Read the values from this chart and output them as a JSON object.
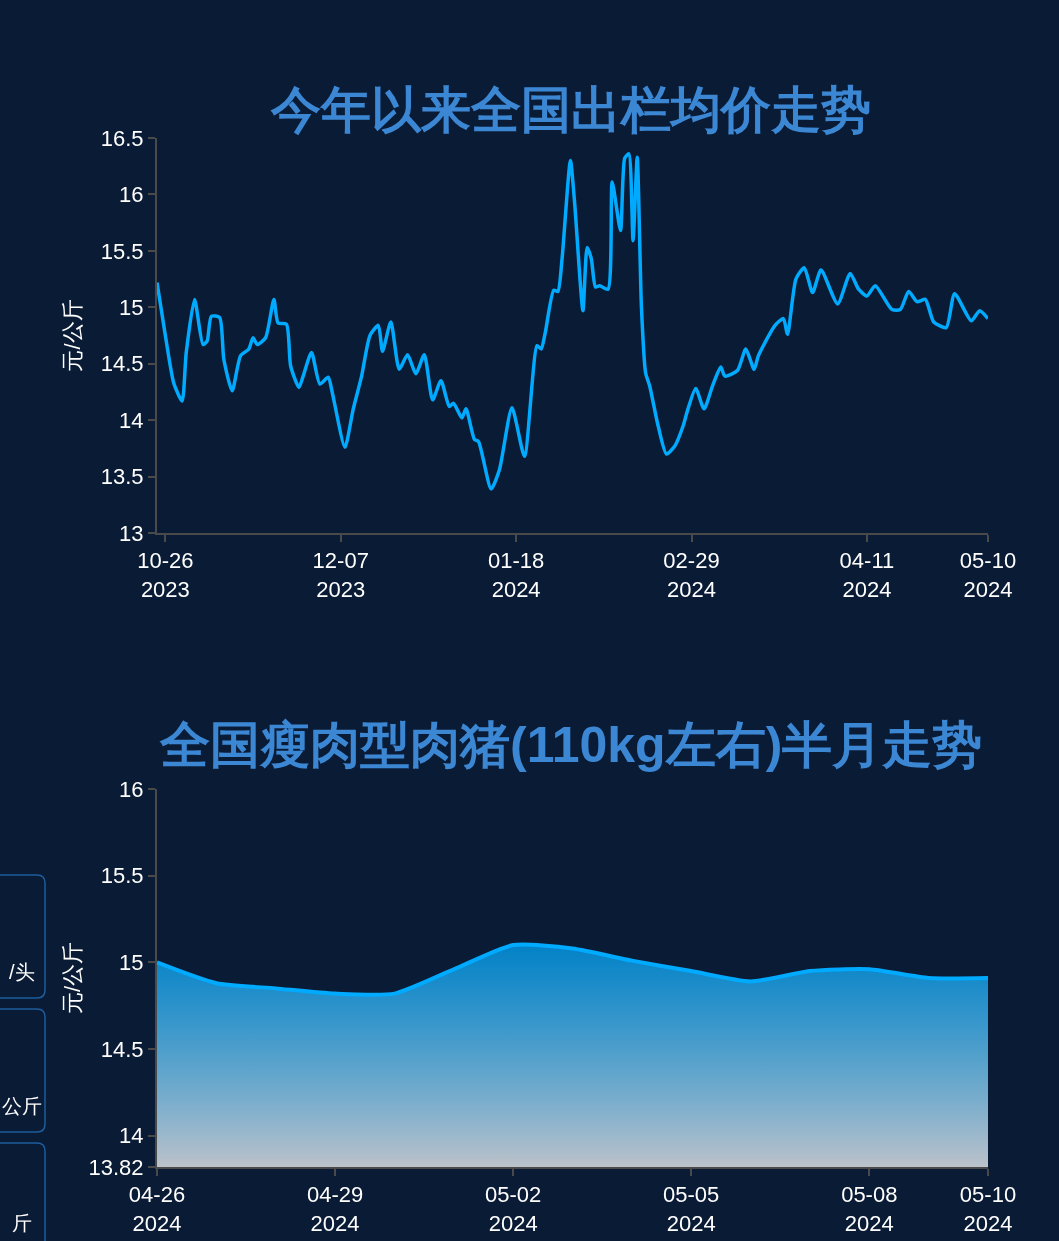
{
  "chart_data": [
    {
      "type": "line",
      "title": "今年以来全国出栏均价走势",
      "ylabel": "元/公斤",
      "x": [
        "2023-10-24",
        "2023-10-26",
        "2023-10-28",
        "2023-10-30",
        "2023-10-31",
        "2023-11-02",
        "2023-11-04",
        "2023-11-05",
        "2023-11-06",
        "2023-11-08",
        "2023-11-09",
        "2023-11-11",
        "2023-11-13",
        "2023-11-15",
        "2023-11-16",
        "2023-11-17",
        "2023-11-19",
        "2023-11-21",
        "2023-11-22",
        "2023-11-24",
        "2023-11-25",
        "2023-11-27",
        "2023-11-28",
        "2023-11-30",
        "2023-12-02",
        "2023-12-04",
        "2023-12-05",
        "2023-12-08",
        "2023-12-10",
        "2023-12-12",
        "2023-12-14",
        "2023-12-16",
        "2023-12-17",
        "2023-12-19",
        "2023-12-21",
        "2023-12-23",
        "2023-12-25",
        "2023-12-27",
        "2023-12-29",
        "2023-12-31",
        "2024-01-02",
        "2024-01-03",
        "2024-01-05",
        "2024-01-06",
        "2024-01-08",
        "2024-01-09",
        "2024-01-12",
        "2024-01-14",
        "2024-01-17",
        "2024-01-20",
        "2024-01-23",
        "2024-01-24",
        "2024-01-25",
        "2024-01-27",
        "2024-01-28",
        "2024-01-29",
        "2024-01-31",
        "2024-02-01",
        "2024-02-03",
        "2024-02-04",
        "2024-02-05",
        "2024-02-06",
        "2024-02-07",
        "2024-02-09",
        "2024-02-10",
        "2024-02-12",
        "2024-02-13",
        "2024-02-14",
        "2024-02-15",
        "2024-02-16",
        "2024-02-17",
        "2024-02-18",
        "2024-02-19",
        "2024-02-21",
        "2024-02-23",
        "2024-02-25",
        "2024-02-27",
        "2024-02-28",
        "2024-03-01",
        "2024-03-03",
        "2024-03-05",
        "2024-03-07",
        "2024-03-08",
        "2024-03-11",
        "2024-03-13",
        "2024-03-15",
        "2024-03-16",
        "2024-03-20",
        "2024-03-22",
        "2024-03-23",
        "2024-03-25",
        "2024-03-27",
        "2024-03-29",
        "2024-03-31",
        "2024-04-04",
        "2024-04-07",
        "2024-04-09",
        "2024-04-11",
        "2024-04-13",
        "2024-04-17",
        "2024-04-19",
        "2024-04-21",
        "2024-04-23",
        "2024-04-25",
        "2024-04-27",
        "2024-04-30",
        "2024-05-02",
        "2024-05-06",
        "2024-05-08",
        "2024-05-10"
      ],
      "series": [
        {
          "color": "#00aaff",
          "values": [
            15.22,
            14.75,
            14.33,
            14.17,
            14.6,
            15.07,
            14.67,
            14.7,
            14.92,
            14.91,
            14.54,
            14.26,
            14.57,
            14.63,
            14.73,
            14.67,
            14.73,
            15.07,
            14.86,
            14.85,
            14.48,
            14.29,
            14.39,
            14.6,
            14.32,
            14.38,
            14.24,
            13.76,
            14.1,
            14.39,
            14.75,
            14.84,
            14.61,
            14.87,
            14.45,
            14.58,
            14.41,
            14.58,
            14.18,
            14.35,
            14.12,
            14.15,
            14.02,
            14.1,
            13.83,
            13.81,
            13.39,
            13.56,
            14.11,
            13.68,
            14.66,
            14.63,
            14.78,
            15.15,
            15.14,
            15.43,
            16.3,
            15.93,
            14.97,
            15.53,
            15.43,
            15.18,
            15.19,
            15.16,
            16.11,
            15.68,
            16.32,
            16.36,
            15.59,
            16.33,
            15.01,
            14.42,
            14.3,
            13.95,
            13.7,
            13.77,
            13.95,
            14.08,
            14.28,
            14.1,
            14.3,
            14.47,
            14.39,
            14.44,
            14.63,
            14.45,
            14.57,
            14.84,
            14.9,
            14.76,
            15.25,
            15.35,
            15.13,
            15.33,
            15.03,
            15.3,
            15.16,
            15.1,
            15.19,
            14.98,
            14.98,
            15.14,
            15.05,
            15.07,
            14.87,
            14.82,
            15.12,
            14.88,
            14.97,
            14.9
          ]
        }
      ],
      "xlim": [
        "2023-10-24",
        "2024-05-10"
      ],
      "xticks": [
        {
          "value": "2023-10-26",
          "label": "10-26\n2023"
        },
        {
          "value": "2023-12-07",
          "label": "12-07\n2023"
        },
        {
          "value": "2024-01-18",
          "label": "01-18\n2024"
        },
        {
          "value": "2024-02-29",
          "label": "02-29\n2024"
        },
        {
          "value": "2024-04-11",
          "label": "04-11\n2024"
        },
        {
          "value": "2024-05-10",
          "label": "05-10\n2024"
        }
      ],
      "ylim": [
        13,
        16.5
      ],
      "yticks": [
        13,
        13.5,
        14,
        14.5,
        15,
        15.5,
        16,
        16.5
      ],
      "grid": false
    },
    {
      "type": "area",
      "title": "全国瘦肉型肉猪(110kg左右)半月走势",
      "ylabel": "元/公斤",
      "x": [
        "2024-04-26",
        "2024-04-27",
        "2024-04-28",
        "2024-04-29",
        "2024-04-30",
        "2024-05-01",
        "2024-05-02",
        "2024-05-03",
        "2024-05-04",
        "2024-05-05",
        "2024-05-06",
        "2024-05-07",
        "2024-05-08",
        "2024-05-09",
        "2024-05-10"
      ],
      "series": [
        {
          "color": "#00aaff",
          "values": [
            15.0,
            14.88,
            14.85,
            14.82,
            14.82,
            14.96,
            15.1,
            15.08,
            15.01,
            14.95,
            14.89,
            14.95,
            14.96,
            14.91,
            14.91
          ]
        }
      ],
      "xlim": [
        "2024-04-26",
        "2024-05-10"
      ],
      "xticks": [
        {
          "value": "2024-04-26",
          "label": "04-26\n2024"
        },
        {
          "value": "2024-04-29",
          "label": "04-29\n2024"
        },
        {
          "value": "2024-05-02",
          "label": "05-02\n2024"
        },
        {
          "value": "2024-05-05",
          "label": "05-05\n2024"
        },
        {
          "value": "2024-05-08",
          "label": "05-08\n2024"
        },
        {
          "value": "2024-05-10",
          "label": "05-10\n2024"
        }
      ],
      "ylim": [
        13.82,
        16
      ],
      "yticks": [
        13.82,
        14,
        14.5,
        15,
        15.5,
        16
      ],
      "grid": false
    },
    {
      "type": "other",
      "annotations": [
        "/头",
        "公斤",
        "斤"
      ]
    }
  ]
}
